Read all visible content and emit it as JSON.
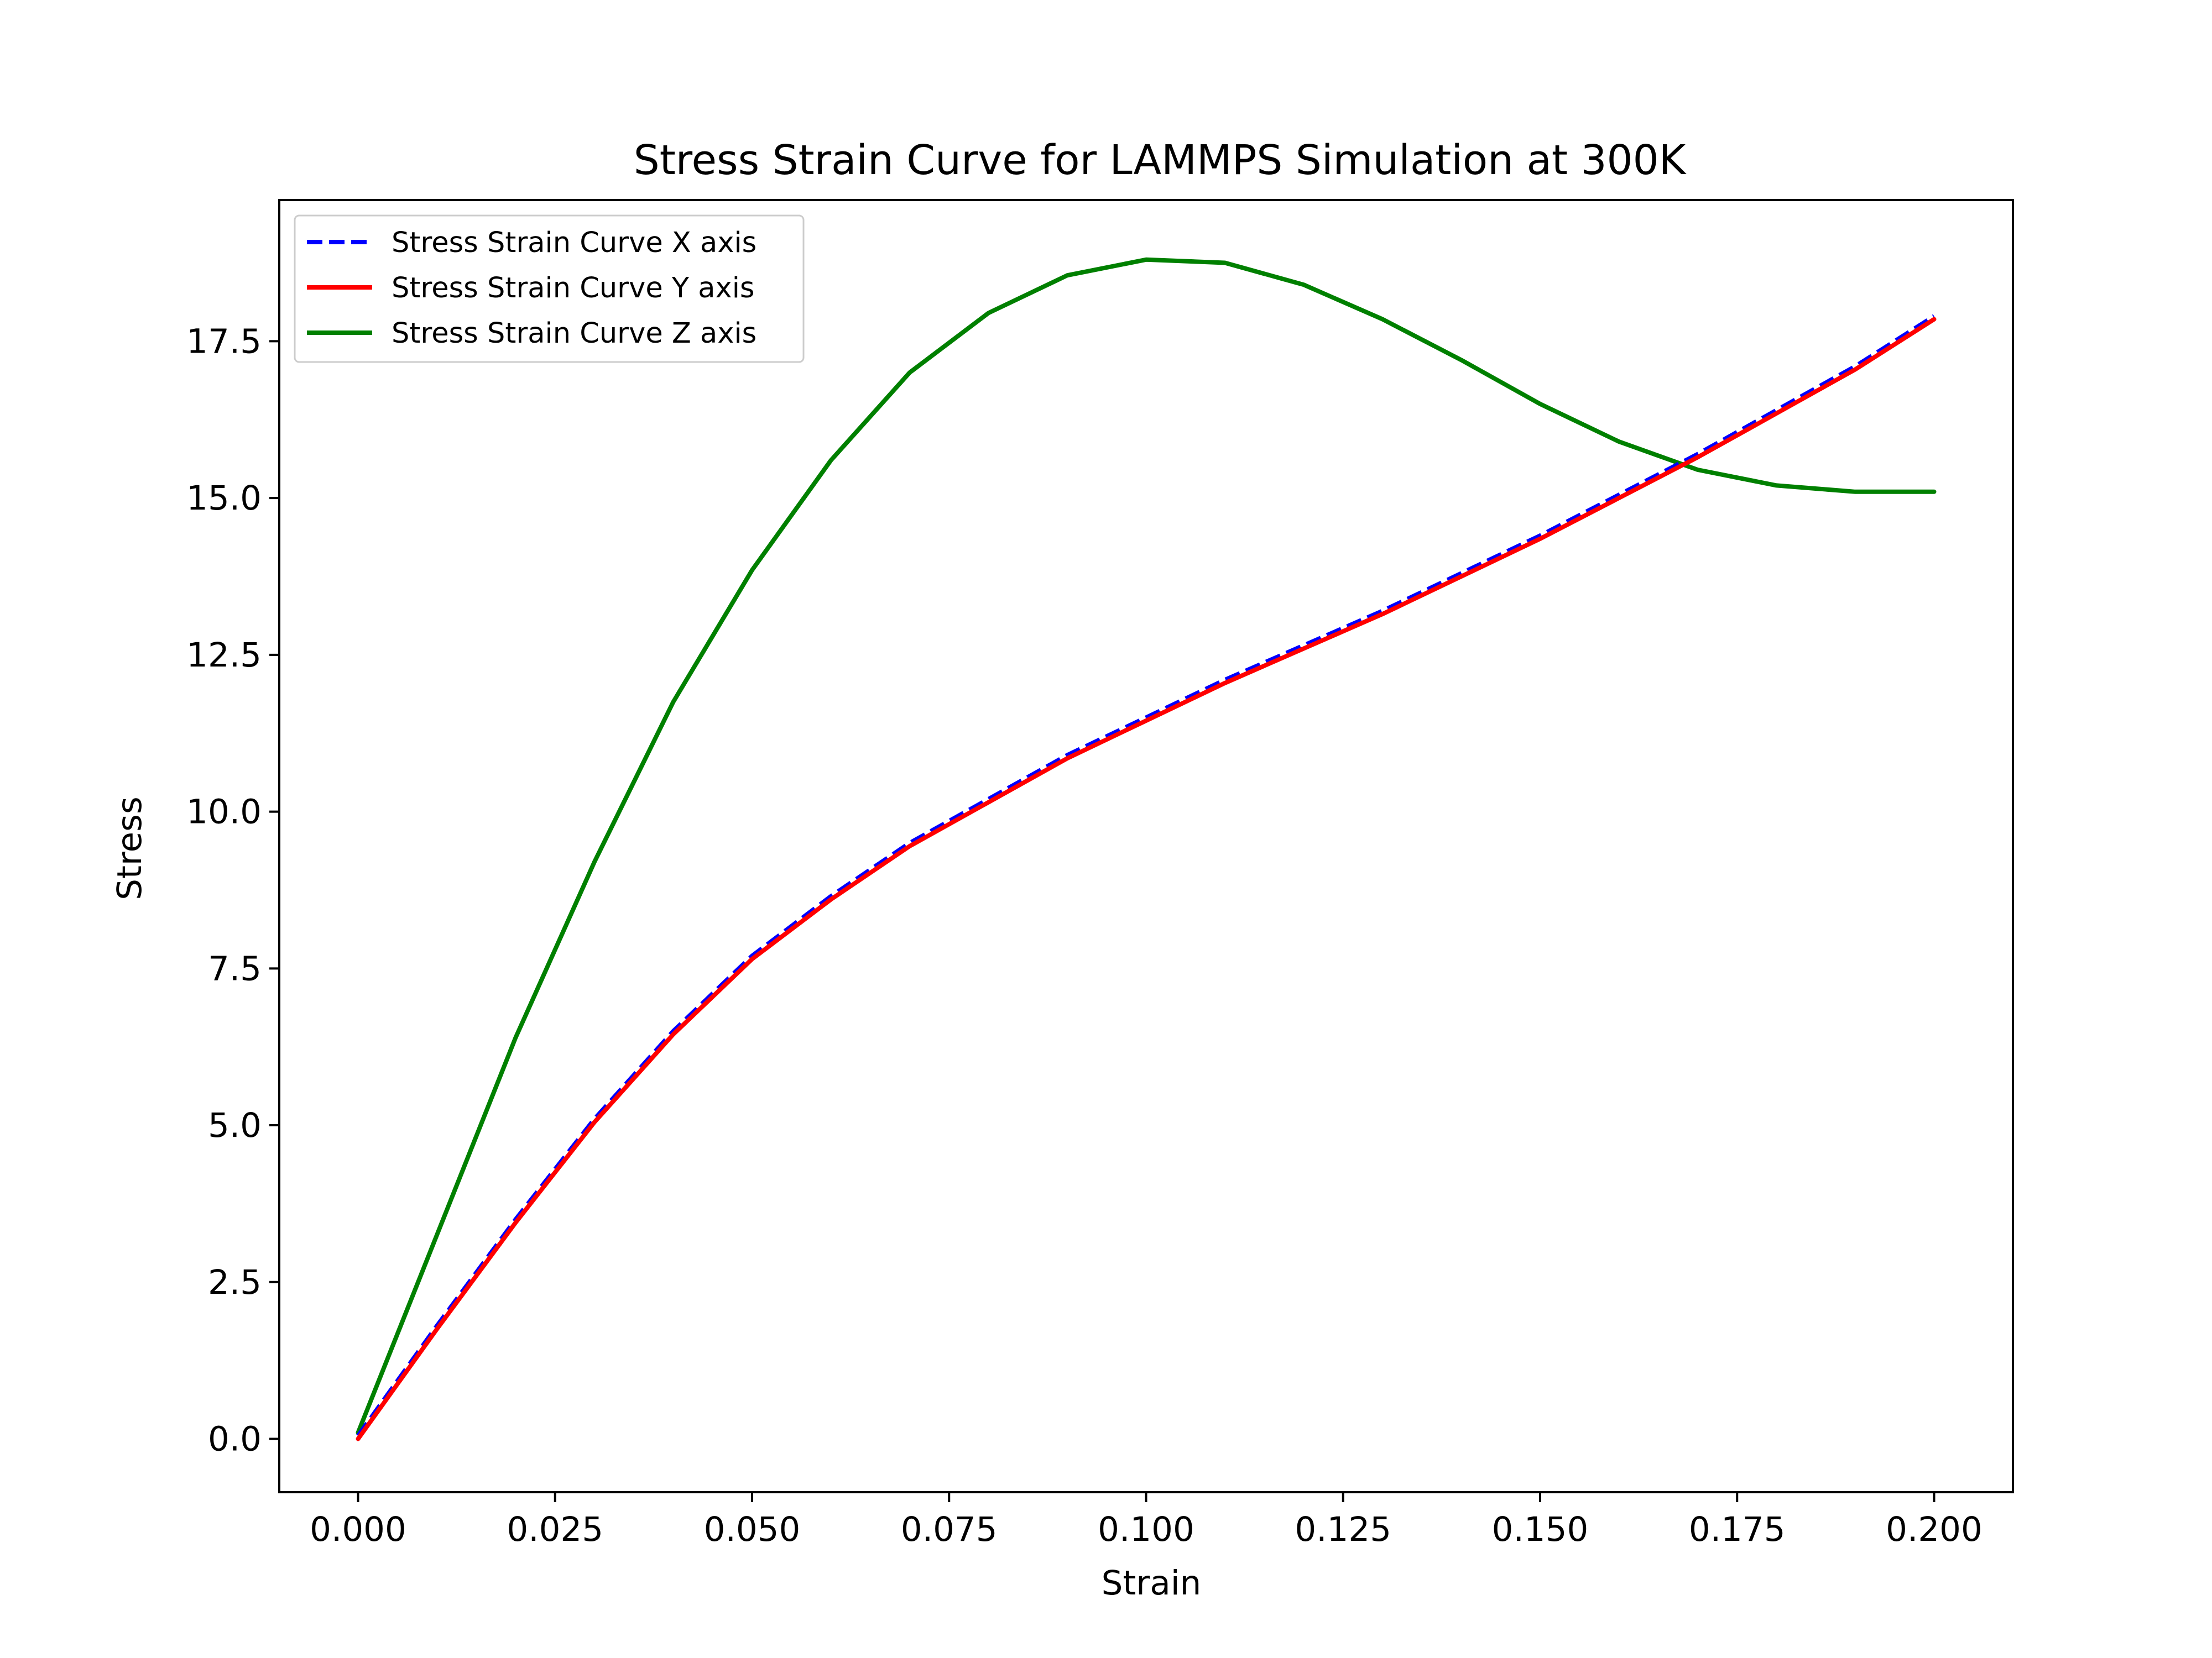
{
  "chart_data": {
    "type": "line",
    "title": "Stress Strain Curve for LAMMPS Simulation at 300K",
    "xlabel": "Strain",
    "ylabel": "Stress",
    "xlim": [
      -0.01,
      0.21
    ],
    "ylim": [
      -0.85,
      19.75
    ],
    "x_ticks": [
      0.0,
      0.025,
      0.05,
      0.075,
      0.1,
      0.125,
      0.15,
      0.175,
      0.2
    ],
    "x_tick_labels": [
      "0.000",
      "0.025",
      "0.050",
      "0.075",
      "0.100",
      "0.125",
      "0.150",
      "0.175",
      "0.200"
    ],
    "y_ticks": [
      0.0,
      2.5,
      5.0,
      7.5,
      10.0,
      12.5,
      15.0,
      17.5
    ],
    "y_tick_labels": [
      "0.0",
      "2.5",
      "5.0",
      "7.5",
      "10.0",
      "12.5",
      "15.0",
      "17.5"
    ],
    "grid": false,
    "legend_position": "top-left",
    "x": [
      0.0,
      0.01,
      0.02,
      0.03,
      0.04,
      0.05,
      0.06,
      0.07,
      0.08,
      0.09,
      0.1,
      0.11,
      0.12,
      0.13,
      0.14,
      0.15,
      0.16,
      0.17,
      0.18,
      0.19,
      0.2
    ],
    "series": [
      {
        "name": "Stress Strain Curve X axis",
        "color": "#0000ff",
        "style": "dashed",
        "values": [
          0.05,
          1.8,
          3.5,
          5.1,
          6.5,
          7.7,
          8.65,
          9.5,
          10.2,
          10.9,
          11.5,
          12.1,
          12.65,
          13.2,
          13.8,
          14.4,
          15.05,
          15.7,
          16.4,
          17.1,
          17.9
        ]
      },
      {
        "name": "Stress Strain Curve Y axis",
        "color": "#ff0000",
        "style": "solid",
        "values": [
          0.0,
          1.75,
          3.45,
          5.05,
          6.45,
          7.65,
          8.6,
          9.45,
          10.15,
          10.85,
          11.45,
          12.05,
          12.6,
          13.15,
          13.75,
          14.35,
          15.0,
          15.65,
          16.35,
          17.05,
          17.85
        ]
      },
      {
        "name": "Stress Strain Curve Z axis",
        "color": "#008000",
        "style": "solid",
        "values": [
          0.1,
          3.25,
          6.4,
          9.2,
          11.75,
          13.85,
          15.6,
          17.0,
          17.95,
          18.55,
          18.8,
          18.75,
          18.4,
          17.85,
          17.2,
          16.5,
          15.9,
          15.45,
          15.2,
          15.1,
          15.1
        ]
      }
    ]
  }
}
